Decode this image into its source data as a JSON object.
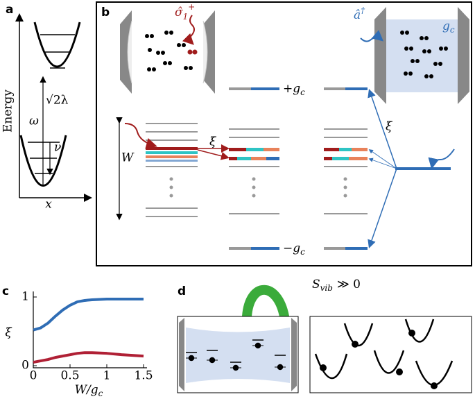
{
  "panel_a": {
    "label": "a",
    "y_label": "Energy",
    "x_label": "x",
    "omega": "ω",
    "sqrt": "√2λ",
    "nu": "ν"
  },
  "panel_b": {
    "label": "b",
    "sigma": "σ̂",
    "sigma_sub": "1",
    "sigma_sup": "+",
    "adag": "â",
    "adag_sup": "†",
    "gc": "g",
    "gc_sub": "c",
    "plus_gc": "+g",
    "plus_gc_sub": "c",
    "minus_gc": "−g",
    "minus_gc_sub": "c",
    "W": "W",
    "xi_left": "ξ",
    "xi_right": "ξ"
  },
  "panel_d": {
    "label": "d",
    "entropy": "S",
    "entropy_sub": "vib",
    "entropy_rel": "≫ 0"
  },
  "chart_data": {
    "type": "line",
    "panel_label": "c",
    "x_label": "W/g",
    "x_label_sub": "c",
    "y_label": "ξ",
    "x": [
      0,
      0.1,
      0.2,
      0.3,
      0.4,
      0.5,
      0.6,
      0.7,
      0.8,
      1.0,
      1.2,
      1.5
    ],
    "series": [
      {
        "color": "#2f6db5",
        "values": [
          0.52,
          0.55,
          0.62,
          0.72,
          0.81,
          0.88,
          0.93,
          0.95,
          0.96,
          0.97,
          0.97,
          0.97
        ]
      },
      {
        "color": "#b02035",
        "values": [
          0.05,
          0.07,
          0.09,
          0.12,
          0.14,
          0.16,
          0.18,
          0.19,
          0.19,
          0.18,
          0.16,
          0.14
        ]
      }
    ],
    "xlim": [
      0,
      1.5
    ],
    "ylim": [
      0,
      1
    ],
    "xticks": [
      0,
      0.5,
      1,
      1.5
    ],
    "yticks": [
      0,
      1
    ]
  }
}
